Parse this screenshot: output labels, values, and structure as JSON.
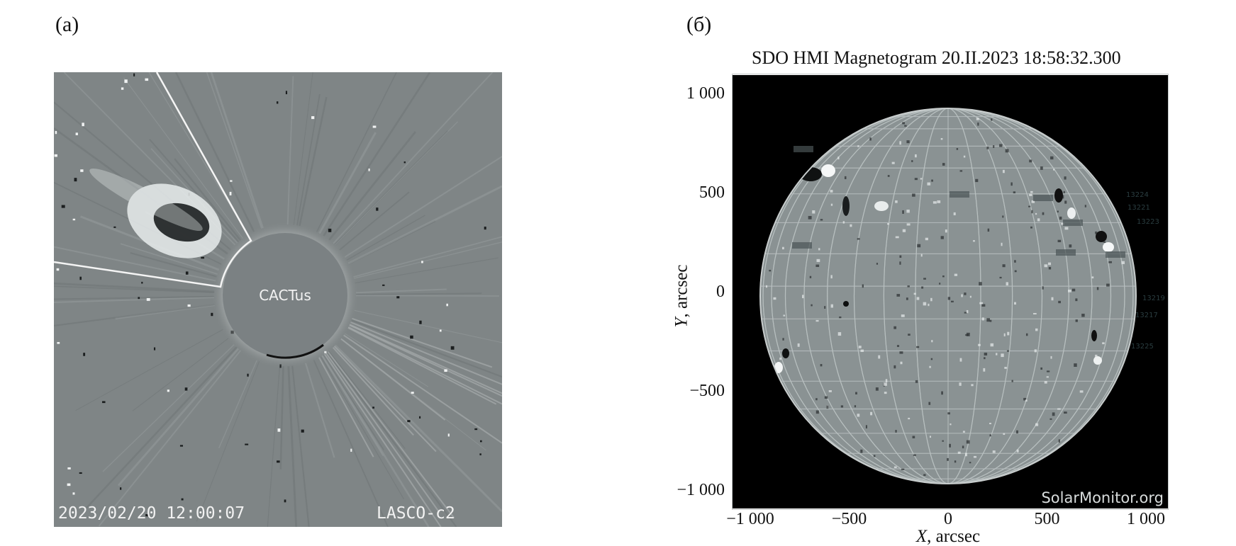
{
  "panel_a": {
    "label": "(a)",
    "center_text": "CACTus",
    "timestamp": "2023/02/20 12:00:07",
    "instrument": "LASCO-c2",
    "colors": {
      "background": "#7f8586",
      "occulter": "#7b8183",
      "wedge": "#ffffff"
    }
  },
  "panel_b": {
    "label": "(б)",
    "title": "SDO HMI Magnetogram 20.II.2023 18:58:32.300",
    "watermark": "SolarMonitor.org",
    "xlabel_var": "X",
    "xlabel_unit": ", arcsec",
    "ylabel_var": "Y",
    "ylabel_unit": ", arcsec",
    "xticks": [
      "−1 000",
      "−500",
      "0",
      "500",
      "1 000"
    ],
    "yticks": [
      "1 000",
      "500",
      "0",
      "−500",
      "−1 000"
    ],
    "xlim": [
      -1000,
      1000
    ],
    "ylim": [
      -1000,
      1000
    ],
    "region_labels": [
      "13224",
      "13221",
      "13223",
      "13219",
      "13217",
      "13225"
    ],
    "colors": {
      "background": "#000000",
      "disk": "#8a9293",
      "grid": "#b9c0c1"
    }
  }
}
